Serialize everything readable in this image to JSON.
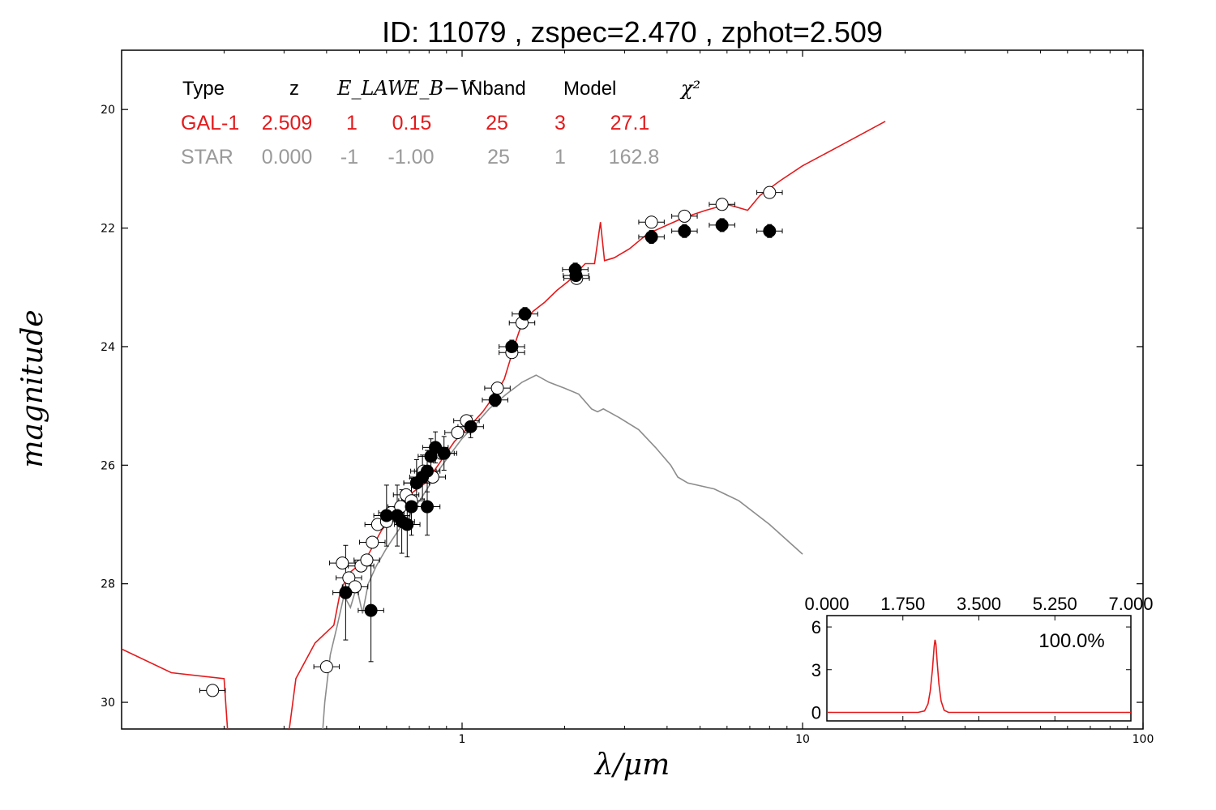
{
  "title": "ID:  11079 , zspec=2.470 , zphot=2.509",
  "colors": {
    "galaxy": "#e31a1c",
    "star": "#8c8c8c",
    "pdz": "#e31a1c"
  },
  "legend": {
    "headers": [
      "Type",
      "z",
      "E_LAW",
      "E_B−V",
      "Nband",
      "Model",
      "χ²"
    ],
    "rows": [
      {
        "name": "galaxy",
        "values": [
          "GAL-1",
          "2.509",
          "1",
          "0.15",
          "25",
          "3",
          "27.1"
        ]
      },
      {
        "name": "star",
        "values": [
          "STAR",
          "0.000",
          "-1",
          "-1.00",
          "25",
          "1",
          "162.8"
        ]
      }
    ]
  },
  "chart_data": [
    {
      "type": "scatter",
      "xlabel": "λ/μm",
      "ylabel": "magnitude",
      "xscale": "log",
      "xlim": [
        0.1,
        100
      ],
      "ylim": [
        30.45,
        19.0
      ],
      "y_inverted": true,
      "xticks": [
        1,
        10,
        100
      ],
      "xtick_labels": [
        "1",
        "10",
        "100"
      ],
      "yticks": [
        20,
        22,
        24,
        26,
        28,
        30
      ],
      "ytick_labels": [
        "20",
        "22",
        "24",
        "26",
        "28",
        "30"
      ],
      "grid": false,
      "series": [
        {
          "name": "GAL-1",
          "kind": "line",
          "points": [
            [
              0.1,
              29.1
            ],
            [
              0.14,
              29.5
            ],
            [
              0.2,
              29.6
            ],
            [
              0.205,
              30.5
            ],
            [
              0.31,
              30.5
            ],
            [
              0.325,
              29.6
            ],
            [
              0.37,
              29.0
            ],
            [
              0.42,
              28.7
            ],
            [
              0.44,
              28.1
            ],
            [
              0.47,
              27.8
            ],
            [
              0.52,
              27.6
            ],
            [
              0.58,
              27.1
            ],
            [
              0.64,
              26.8
            ],
            [
              0.7,
              26.5
            ],
            [
              0.78,
              26.3
            ],
            [
              0.85,
              26.0
            ],
            [
              0.95,
              25.6
            ],
            [
              1.05,
              25.35
            ],
            [
              1.15,
              25.1
            ],
            [
              1.27,
              24.75
            ],
            [
              1.33,
              24.55
            ],
            [
              1.38,
              24.25
            ],
            [
              1.42,
              24.0
            ],
            [
              1.5,
              23.6
            ],
            [
              1.62,
              23.4
            ],
            [
              1.75,
              23.25
            ],
            [
              1.9,
              23.05
            ],
            [
              2.05,
              22.9
            ],
            [
              2.3,
              22.6
            ],
            [
              2.45,
              22.6
            ],
            [
              2.55,
              21.9
            ],
            [
              2.62,
              22.55
            ],
            [
              2.8,
              22.5
            ],
            [
              3.1,
              22.35
            ],
            [
              3.5,
              22.1
            ],
            [
              4.0,
              21.95
            ],
            [
              4.5,
              21.82
            ],
            [
              5.2,
              21.7
            ],
            [
              6.0,
              21.6
            ],
            [
              6.9,
              21.7
            ],
            [
              7.5,
              21.45
            ],
            [
              8.6,
              21.2
            ],
            [
              10,
              20.95
            ],
            [
              13,
              20.6
            ],
            [
              17.5,
              20.2
            ]
          ]
        },
        {
          "name": "STAR",
          "kind": "line",
          "points": [
            [
              0.39,
              30.45
            ],
            [
              0.395,
              30.0
            ],
            [
              0.41,
              29.2
            ],
            [
              0.43,
              28.7
            ],
            [
              0.45,
              28.2
            ],
            [
              0.47,
              28.4
            ],
            [
              0.49,
              28.05
            ],
            [
              0.51,
              28.5
            ],
            [
              0.53,
              28.0
            ],
            [
              0.56,
              27.7
            ],
            [
              0.6,
              27.4
            ],
            [
              0.65,
              27.1
            ],
            [
              0.7,
              26.85
            ],
            [
              0.75,
              26.6
            ],
            [
              0.8,
              26.35
            ],
            [
              0.85,
              26.1
            ],
            [
              0.9,
              25.9
            ],
            [
              1.0,
              25.55
            ],
            [
              1.1,
              25.3
            ],
            [
              1.2,
              25.05
            ],
            [
              1.35,
              24.8
            ],
            [
              1.5,
              24.6
            ],
            [
              1.65,
              24.48
            ],
            [
              1.8,
              24.6
            ],
            [
              2.0,
              24.7
            ],
            [
              2.2,
              24.8
            ],
            [
              2.4,
              25.05
            ],
            [
              2.5,
              25.1
            ],
            [
              2.6,
              25.05
            ],
            [
              2.9,
              25.2
            ],
            [
              3.3,
              25.4
            ],
            [
              3.7,
              25.7
            ],
            [
              4.1,
              26.0
            ],
            [
              4.3,
              26.2
            ],
            [
              4.6,
              26.3
            ],
            [
              5.5,
              26.4
            ],
            [
              6.5,
              26.6
            ],
            [
              8.0,
              27.0
            ],
            [
              10.0,
              27.5
            ]
          ]
        },
        {
          "name": "observed",
          "kind": "points",
          "marker": "filled",
          "points": [
            [
              0.455,
              28.15
            ],
            [
              0.54,
              28.45
            ],
            [
              0.6,
              26.85
            ],
            [
              0.645,
              26.85
            ],
            [
              0.665,
              26.95
            ],
            [
              0.69,
              27.0
            ],
            [
              0.71,
              26.7
            ],
            [
              0.735,
              26.3
            ],
            [
              0.765,
              26.2
            ],
            [
              0.79,
              26.1
            ],
            [
              0.79,
              26.7
            ],
            [
              0.81,
              25.85
            ],
            [
              0.835,
              25.7
            ],
            [
              0.885,
              25.8
            ],
            [
              1.06,
              25.35
            ],
            [
              1.25,
              24.9
            ],
            [
              1.4,
              24.0
            ],
            [
              1.53,
              23.45
            ],
            [
              2.15,
              22.7
            ],
            [
              2.16,
              22.8
            ],
            [
              3.6,
              22.15
            ],
            [
              4.5,
              22.05
            ],
            [
              5.8,
              21.95
            ],
            [
              8.0,
              22.05
            ]
          ]
        },
        {
          "name": "predicted",
          "kind": "points",
          "marker": "open",
          "points": [
            [
              0.185,
              29.8
            ],
            [
              0.4,
              29.4
            ],
            [
              0.445,
              27.65
            ],
            [
              0.465,
              27.9
            ],
            [
              0.485,
              28.05
            ],
            [
              0.505,
              27.7
            ],
            [
              0.525,
              27.6
            ],
            [
              0.545,
              27.3
            ],
            [
              0.565,
              27.0
            ],
            [
              0.6,
              26.95
            ],
            [
              0.62,
              26.8
            ],
            [
              0.66,
              26.7
            ],
            [
              0.685,
              26.5
            ],
            [
              0.71,
              26.6
            ],
            [
              0.735,
              26.3
            ],
            [
              0.77,
              26.1
            ],
            [
              0.82,
              26.2
            ],
            [
              0.87,
              25.8
            ],
            [
              0.97,
              25.45
            ],
            [
              1.03,
              25.25
            ],
            [
              1.27,
              24.7
            ],
            [
              1.4,
              24.1
            ],
            [
              1.5,
              23.6
            ],
            [
              2.17,
              22.85
            ],
            [
              3.6,
              21.9
            ],
            [
              4.5,
              21.8
            ],
            [
              5.8,
              21.6
            ],
            [
              8.0,
              21.4
            ]
          ]
        }
      ]
    },
    {
      "type": "line",
      "name": "pdz_inset",
      "xlim": [
        0.0,
        7.0
      ],
      "ylim": [
        -0.6,
        6.8
      ],
      "xticks": [
        0.0,
        1.75,
        3.5,
        5.25,
        7.0
      ],
      "xtick_labels": [
        "0.000",
        "1.750",
        "3.500",
        "5.250",
        "7.000"
      ],
      "yticks": [
        0,
        3,
        6
      ],
      "ytick_labels": [
        "0",
        "3",
        "6"
      ],
      "annotation": "100.0%",
      "points": [
        [
          0.0,
          0.0
        ],
        [
          2.1,
          0.0
        ],
        [
          2.25,
          0.1
        ],
        [
          2.33,
          0.6
        ],
        [
          2.38,
          1.5
        ],
        [
          2.43,
          3.0
        ],
        [
          2.47,
          4.6
        ],
        [
          2.49,
          5.1
        ],
        [
          2.51,
          4.8
        ],
        [
          2.54,
          3.5
        ],
        [
          2.58,
          2.0
        ],
        [
          2.63,
          0.8
        ],
        [
          2.7,
          0.15
        ],
        [
          2.8,
          0.0
        ],
        [
          7.0,
          0.0
        ]
      ]
    }
  ]
}
